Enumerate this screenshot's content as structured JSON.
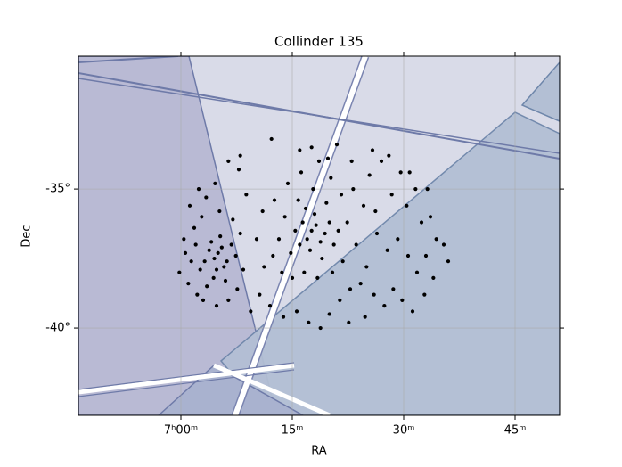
{
  "chart_data": {
    "type": "scatter",
    "title": "Collinder 135",
    "x_label": "RA",
    "y_label": "Dec",
    "color": "#000000",
    "grid": true,
    "xlim": [
      -13.8,
      51
    ],
    "ylim": [
      -43.14,
      -30.22
    ],
    "xticks": [
      {
        "value": 0,
        "label": "7ʰ00ᵐ"
      },
      {
        "value": 15,
        "label": "15ᵐ"
      },
      {
        "value": 30,
        "label": "30ᵐ"
      },
      {
        "value": 45,
        "label": "45ᵐ"
      }
    ],
    "yticks": [
      {
        "value": -35,
        "label": "-35°"
      },
      {
        "value": -40,
        "label": "-40°"
      }
    ],
    "series": [
      {
        "name": "Collinder 135",
        "color": "#000000",
        "x": [
          5.0,
          4.5,
          5.5,
          3.8,
          6.2,
          4.8,
          5.8,
          3.2,
          6.8,
          4.1,
          5.3,
          2.6,
          7.4,
          4.4,
          6.0,
          3.5,
          2.0,
          1.4,
          0.6,
          -0.2,
          1.0,
          2.2,
          0.4,
          1.8,
          2.8,
          3.4,
          4.6,
          2.4,
          1.2,
          5.2,
          7.0,
          8.0,
          8.4,
          7.6,
          6.4,
          4.8,
          3.0,
          8.8,
          7.8,
          6.4,
          17.6,
          17.0,
          18.2,
          16.4,
          18.8,
          17.4,
          19.4,
          16.0,
          15.4,
          18.0,
          19.0,
          20.0,
          16.8,
          14.8,
          20.6,
          21.2,
          19.6,
          15.8,
          17.8,
          14.0,
          13.2,
          12.4,
          13.6,
          15.0,
          16.6,
          18.4,
          20.4,
          21.8,
          22.4,
          21.6,
          20.2,
          18.6,
          16.2,
          14.4,
          12.6,
          11.0,
          10.2,
          11.2,
          10.6,
          12.0,
          13.8,
          15.6,
          17.2,
          18.8,
          20.0,
          21.4,
          22.8,
          9.4,
          8.0,
          12.2,
          16.0,
          17.6,
          19.8,
          23.2,
          24.6,
          25.4,
          26.2,
          27.0,
          28.4,
          29.6,
          30.4,
          31.6,
          32.4,
          33.6,
          34.4,
          35.4,
          36.0,
          33.0,
          31.8,
          30.6,
          29.2,
          27.8,
          26.4,
          25.0,
          23.6,
          24.2,
          26.0,
          27.4,
          28.6,
          29.8,
          31.2,
          32.8,
          34.0,
          22.6,
          24.8,
          23.0,
          25.8,
          28.0,
          30.8,
          33.2,
          21.0
        ],
        "values": [
          -37.3,
          -37.5,
          -37.1,
          -37.2,
          -37.6,
          -37.9,
          -37.8,
          -37.6,
          -37.0,
          -36.9,
          -36.7,
          -37.9,
          -37.4,
          -38.2,
          -38.3,
          -38.5,
          -37.0,
          -37.6,
          -37.3,
          -38.0,
          -38.4,
          -38.8,
          -36.8,
          -36.4,
          -36.0,
          -35.3,
          -34.8,
          -35.0,
          -35.6,
          -35.8,
          -36.1,
          -36.6,
          -37.9,
          -38.6,
          -39.0,
          -39.2,
          -39.0,
          -35.2,
          -34.3,
          -34.0,
          -36.5,
          -36.8,
          -36.3,
          -36.2,
          -36.9,
          -37.2,
          -36.6,
          -37.0,
          -36.5,
          -35.9,
          -37.5,
          -36.2,
          -35.7,
          -37.3,
          -37.0,
          -36.5,
          -35.5,
          -35.4,
          -35.0,
          -36.0,
          -36.8,
          -37.4,
          -38.0,
          -38.2,
          -38.0,
          -38.2,
          -38.0,
          -37.6,
          -36.2,
          -35.2,
          -34.6,
          -34.0,
          -34.4,
          -34.8,
          -35.4,
          -35.8,
          -36.8,
          -37.8,
          -38.8,
          -39.2,
          -39.6,
          -39.4,
          -39.8,
          -40.0,
          -39.5,
          -39.0,
          -38.6,
          -39.4,
          -33.8,
          -33.2,
          -33.6,
          -33.5,
          -33.9,
          -35.0,
          -35.6,
          -34.5,
          -35.8,
          -34.0,
          -35.2,
          -34.4,
          -35.6,
          -35.0,
          -36.2,
          -36.0,
          -36.8,
          -37.0,
          -37.6,
          -37.4,
          -38.0,
          -37.4,
          -36.8,
          -37.2,
          -36.6,
          -37.8,
          -37.0,
          -38.4,
          -38.8,
          -39.2,
          -38.6,
          -39.0,
          -39.4,
          -38.8,
          -38.2,
          -39.8,
          -39.6,
          -34.0,
          -33.6,
          -33.8,
          -34.4,
          -35.0,
          -33.4
        ]
      }
    ]
  }
}
